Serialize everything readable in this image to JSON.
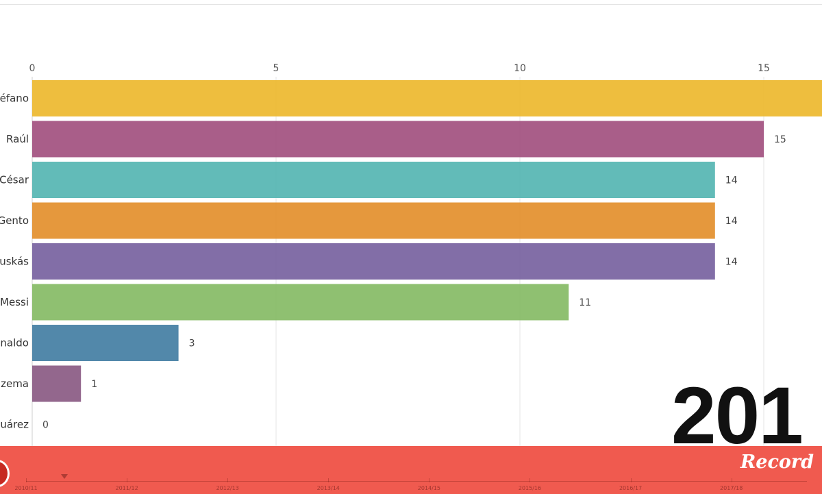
{
  "chart_data": {
    "type": "bar",
    "orientation": "horizontal",
    "categories": [
      "éfano",
      "Raúl",
      "César",
      "Gento",
      "uskás",
      "Messi",
      "naldo",
      "zema",
      "uárez"
    ],
    "values": [
      16.5,
      15,
      14,
      14,
      14,
      11,
      3,
      1,
      0
    ],
    "value_labels": [
      "",
      "15",
      "14",
      "14",
      "14",
      "11",
      "3",
      "1",
      "0"
    ],
    "colors": [
      "#edb92e",
      "#a2507f",
      "#55b5b2",
      "#e38f2c",
      "#7762a0",
      "#85bb65",
      "#437ea3",
      "#8a5a83",
      "#cccccc"
    ],
    "xticks": [
      0,
      5,
      10,
      15
    ],
    "xlim": [
      0,
      16.5
    ],
    "grid": true,
    "title": "",
    "xlabel": "",
    "ylabel": ""
  },
  "overlay": {
    "year_text": "201"
  },
  "timeline": {
    "labels": [
      "2010/11",
      "2011/12",
      "2012/13",
      "2013/14",
      "2014/15",
      "2015/16",
      "2016/17",
      "2017/18"
    ]
  },
  "brand": {
    "name": "Record"
  },
  "colors": {
    "footer_bg": "#f05a4f",
    "play_button": "#c62a22"
  }
}
